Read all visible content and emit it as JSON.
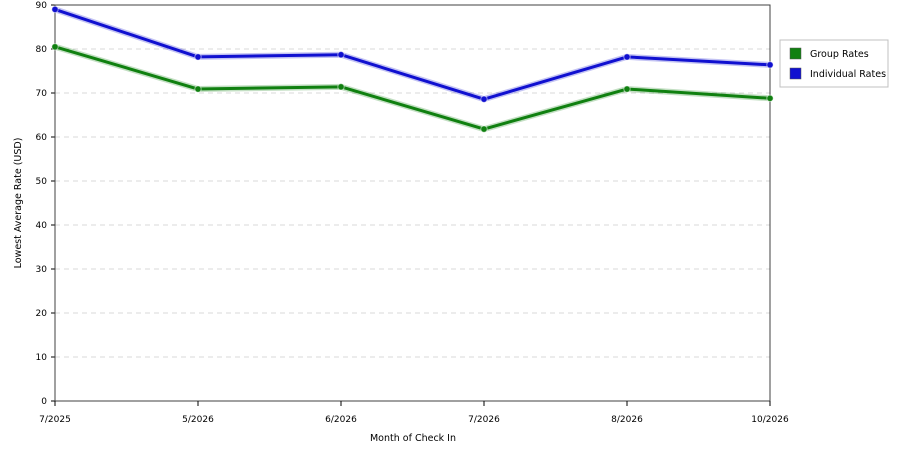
{
  "chart_data": {
    "type": "line",
    "title": "",
    "xlabel": "Month of Check In",
    "ylabel": "Lowest Average Rate (USD)",
    "categories": [
      "7/2025",
      "5/2026",
      "6/2026",
      "7/2026",
      "8/2026",
      "10/2026"
    ],
    "ylim": [
      0,
      90
    ],
    "yticks": [
      0,
      10,
      20,
      30,
      40,
      50,
      60,
      70,
      80,
      90
    ],
    "grid": true,
    "legend_position": "top-right",
    "series": [
      {
        "name": "Group Rates",
        "color": "#108010",
        "values": [
          80.5,
          70.9,
          71.4,
          61.8,
          70.9,
          68.8
        ]
      },
      {
        "name": "Individual Rates",
        "color": "#1010d0",
        "values": [
          89.0,
          78.2,
          78.7,
          68.6,
          78.2,
          76.4
        ]
      }
    ]
  }
}
